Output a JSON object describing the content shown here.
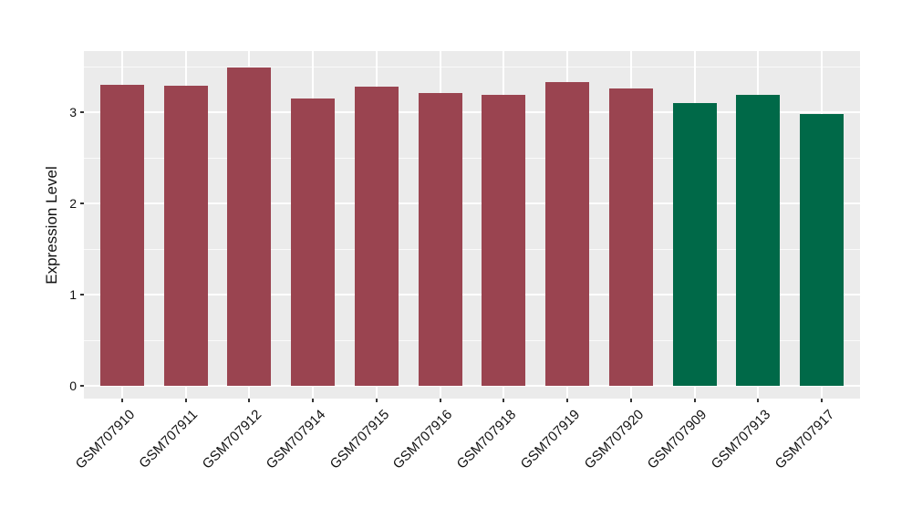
{
  "chart_data": {
    "type": "bar",
    "title": "",
    "xlabel": "",
    "ylabel": "Expression Level",
    "categories": [
      "GSM707910",
      "GSM707911",
      "GSM707912",
      "GSM707914",
      "GSM707915",
      "GSM707916",
      "GSM707918",
      "GSM707919",
      "GSM707920",
      "GSM707909",
      "GSM707913",
      "GSM707917"
    ],
    "values": [
      3.3,
      3.29,
      3.49,
      3.15,
      3.28,
      3.21,
      3.19,
      3.33,
      3.26,
      3.1,
      3.19,
      2.98
    ],
    "bar_groups": [
      "group1",
      "group1",
      "group1",
      "group1",
      "group1",
      "group1",
      "group1",
      "group1",
      "group1",
      "group2",
      "group2",
      "group2"
    ],
    "group_colors": {
      "group1": "#9A4450",
      "group2": "#006948"
    },
    "y_ticks": [
      0,
      1,
      2,
      3
    ],
    "y_minor_gridlines": [
      0.5,
      1.5,
      2.5,
      3.5
    ],
    "ylim": [
      -0.14,
      3.67
    ],
    "grid": true,
    "legend_position": "none",
    "theme": {
      "panel_bg": "#EBEBEB",
      "grid_color": "#FFFFFF",
      "text_color": "#111111",
      "tick_mark_color": "#333333",
      "figure_bg": "#FFFFFF"
    }
  }
}
